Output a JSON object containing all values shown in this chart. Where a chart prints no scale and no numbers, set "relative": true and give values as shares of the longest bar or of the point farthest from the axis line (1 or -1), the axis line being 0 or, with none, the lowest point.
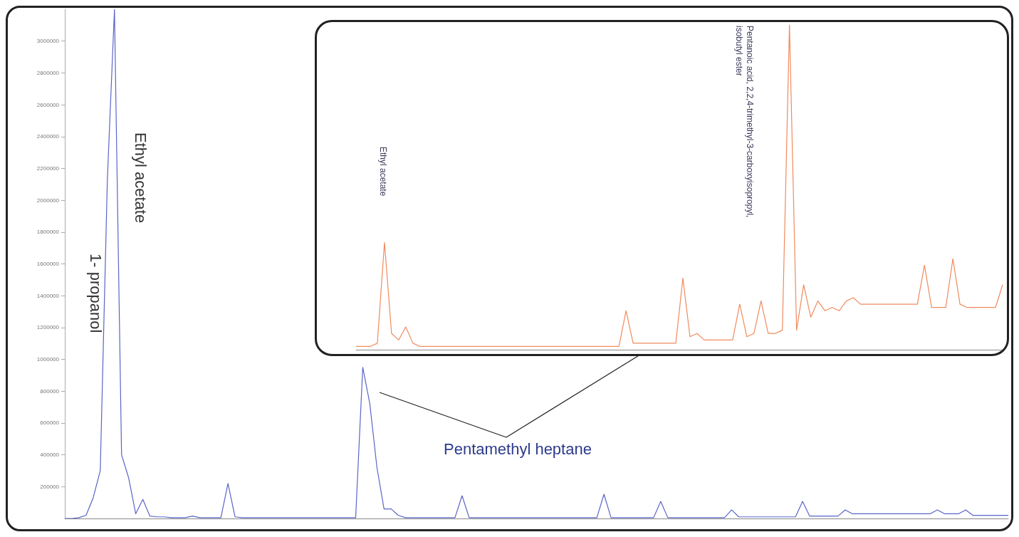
{
  "chart_data": [
    {
      "type": "line",
      "color": "#5a64c8",
      "ylim": [
        0,
        3200000
      ],
      "yticks": [
        200000,
        400000,
        600000,
        800000,
        1000000,
        1200000,
        1400000,
        1600000,
        1800000,
        2000000,
        2200000,
        2400000,
        2600000,
        2800000,
        3000000
      ],
      "grid": false,
      "tick_labels": "y",
      "annotations": [
        "1- propanol",
        "Ethyl acetate",
        "Pentamethyl heptane"
      ],
      "categories": [
        null,
        null,
        null,
        null,
        null,
        null,
        null,
        null,
        null,
        null,
        null,
        null,
        null,
        null,
        null,
        null,
        null,
        null,
        null,
        null,
        null,
        null,
        null,
        null,
        null,
        null,
        null,
        null,
        null,
        null,
        null,
        null,
        null,
        null,
        null,
        null,
        null,
        null,
        null,
        null,
        null,
        null,
        null,
        null,
        null,
        null,
        null,
        null,
        null,
        null,
        null,
        null,
        null,
        null,
        null,
        null,
        null,
        null,
        null,
        null,
        null,
        null,
        null,
        null,
        null,
        null,
        null,
        null,
        null,
        null,
        null,
        null,
        null,
        null,
        null,
        null,
        null,
        null,
        null,
        null,
        null,
        null,
        null,
        null,
        null,
        null,
        null,
        null,
        null,
        null,
        null,
        null,
        null,
        null,
        null,
        null,
        null,
        null,
        null,
        null,
        null,
        null,
        null,
        null,
        null,
        null,
        null,
        null,
        null,
        null,
        null,
        null,
        null,
        null,
        null,
        null,
        null,
        null,
        null,
        null,
        null,
        null,
        null,
        null,
        null,
        null,
        null,
        null,
        null,
        null,
        null,
        null,
        null,
        null
      ],
      "values": [
        0,
        0,
        5000,
        20000,
        130000,
        300000,
        2130000,
        3200000,
        400000,
        255000,
        30000,
        120000,
        15000,
        10000,
        10000,
        5000,
        5000,
        5000,
        15000,
        5000,
        5000,
        5000,
        5000,
        220000,
        10000,
        5000,
        5000,
        5000,
        5000,
        5000,
        5000,
        5000,
        5000,
        5000,
        5000,
        5000,
        5000,
        5000,
        5000,
        5000,
        5000,
        5000,
        950000,
        720000,
        320000,
        60000,
        60000,
        20000,
        5000,
        5000,
        5000,
        5000,
        5000,
        5000,
        5000,
        5000,
        143000,
        5000,
        5000,
        5000,
        5000,
        5000,
        5000,
        5000,
        5000,
        5000,
        5000,
        5000,
        5000,
        5000,
        5000,
        5000,
        5000,
        5000,
        5000,
        5000,
        152000,
        5000,
        5000,
        5000,
        5000,
        5000,
        5000,
        5000,
        107000,
        5000,
        5000,
        5000,
        5000,
        5000,
        5000,
        5000,
        5000,
        5000,
        54000,
        10000,
        10000,
        10000,
        10000,
        10000,
        10000,
        10000,
        10000,
        10000,
        107000,
        15000,
        15000,
        15000,
        15000,
        15000,
        54000,
        30000,
        30000,
        30000,
        30000,
        30000,
        30000,
        30000,
        30000,
        30000,
        30000,
        30000,
        30000,
        54000,
        30000,
        30000,
        30000,
        54000,
        20000,
        20000,
        20000,
        20000,
        20000,
        20000
      ]
    },
    {
      "type": "line",
      "color": "#f08a5d",
      "relative": true,
      "tick_labels": false,
      "annotations": [
        "Ethyl acetate",
        "Pentanoic acid, 2,2,4-trimethyl-3-carboxyisopropyl, isobutyl ester"
      ],
      "categories": [
        null,
        null,
        null,
        null,
        null,
        null,
        null,
        null,
        null,
        null,
        null,
        null,
        null,
        null,
        null,
        null,
        null,
        null,
        null,
        null,
        null,
        null,
        null,
        null,
        null,
        null,
        null,
        null,
        null,
        null,
        null,
        null,
        null,
        null,
        null,
        null,
        null,
        null,
        null,
        null,
        null,
        null,
        null,
        null,
        null,
        null,
        null,
        null,
        null,
        null,
        null,
        null,
        null,
        null,
        null,
        null,
        null,
        null,
        null,
        null,
        null,
        null,
        null,
        null,
        null,
        null,
        null,
        null,
        null,
        null,
        null,
        null,
        null,
        null,
        null,
        null,
        null,
        null,
        null,
        null,
        null,
        null,
        null,
        null,
        null,
        null,
        null,
        null,
        null,
        null,
        null,
        null
      ],
      "values": [
        0.01,
        0.01,
        0.01,
        0.02,
        0.33,
        0.05,
        0.03,
        0.07,
        0.02,
        0.01,
        0.01,
        0.01,
        0.01,
        0.01,
        0.01,
        0.01,
        0.01,
        0.01,
        0.01,
        0.01,
        0.01,
        0.01,
        0.01,
        0.01,
        0.01,
        0.01,
        0.01,
        0.01,
        0.01,
        0.01,
        0.01,
        0.01,
        0.01,
        0.01,
        0.01,
        0.01,
        0.01,
        0.01,
        0.12,
        0.02,
        0.02,
        0.02,
        0.02,
        0.02,
        0.02,
        0.02,
        0.22,
        0.04,
        0.05,
        0.03,
        0.03,
        0.03,
        0.03,
        0.03,
        0.14,
        0.04,
        0.05,
        0.15,
        0.05,
        0.05,
        0.06,
        1.0,
        0.06,
        0.2,
        0.1,
        0.15,
        0.12,
        0.13,
        0.12,
        0.15,
        0.16,
        0.14,
        0.14,
        0.14,
        0.14,
        0.14,
        0.14,
        0.14,
        0.14,
        0.14,
        0.26,
        0.13,
        0.13,
        0.13,
        0.28,
        0.14,
        0.13,
        0.13,
        0.13,
        0.13,
        0.13,
        0.2
      ]
    }
  ]
}
